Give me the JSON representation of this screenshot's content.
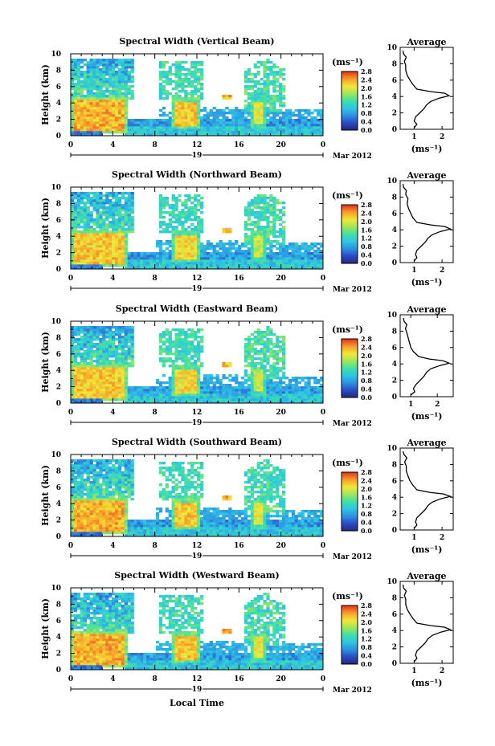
{
  "figure": {
    "xlabel": "Local Time",
    "date_label": "Mar 2012",
    "day_label": "19",
    "unit_label": "(ms⁻¹)",
    "colorbar_ticks": [
      "0.0",
      "0.4",
      "0.8",
      "1.2",
      "1.6",
      "2.0",
      "2.4",
      "2.8"
    ],
    "colorbar_ticks_panel3": [
      "0.0",
      "0.4",
      "0.8",
      "1.2",
      "1.6",
      "2.0",
      "2.4",
      "2.8"
    ],
    "colors": {
      "scale": [
        "#262a6e",
        "#2a48c8",
        "#2d8fe0",
        "#2fc4e6",
        "#3ee0a8",
        "#9ee65a",
        "#f2e83a",
        "#f6a02a",
        "#e8321e"
      ]
    }
  },
  "chart_data": [
    {
      "type": "heatmap",
      "title": "Spectral Width (Vertical Beam)",
      "xlabel": "",
      "ylabel": "Height (km)",
      "xlim": [
        0,
        24
      ],
      "ylim": [
        0,
        10
      ],
      "x_ticks": [
        "0",
        "4",
        "8",
        "12",
        "16",
        "20",
        "0"
      ],
      "y_ticks": [
        "0",
        "2",
        "4",
        "6",
        "8",
        "10"
      ],
      "colorbar": {
        "label": "(ms⁻¹)",
        "range": [
          0.0,
          2.8
        ]
      },
      "average": {
        "title": "Average",
        "xlabel": "(ms⁻¹)",
        "xlim": [
          0.5,
          2.4
        ],
        "x_ticks": [
          "1",
          "2"
        ],
        "y_ticks": [
          "0",
          "2",
          "4",
          "6",
          "8",
          "10"
        ],
        "profile": [
          [
            1.0,
            0.2
          ],
          [
            1.1,
            0.6
          ],
          [
            1.0,
            1.0
          ],
          [
            1.05,
            1.5
          ],
          [
            1.2,
            2.0
          ],
          [
            1.35,
            2.5
          ],
          [
            1.45,
            3.0
          ],
          [
            1.6,
            3.4
          ],
          [
            1.9,
            3.8
          ],
          [
            2.25,
            4.1
          ],
          [
            2.1,
            4.4
          ],
          [
            1.6,
            4.6
          ],
          [
            1.1,
            4.9
          ],
          [
            0.95,
            5.5
          ],
          [
            0.85,
            6.0
          ],
          [
            0.75,
            6.6
          ],
          [
            0.7,
            7.2
          ],
          [
            0.7,
            7.8
          ],
          [
            0.65,
            8.3
          ],
          [
            0.72,
            8.8
          ],
          [
            0.62,
            9.2
          ],
          [
            0.6,
            9.6
          ]
        ]
      },
      "features": [
        {
          "type": "cloud",
          "t": [
            0,
            5.5
          ],
          "h": [
            0.3,
            4.8
          ],
          "v": 2.6
        },
        {
          "type": "cloud",
          "t": [
            9.5,
            12.2
          ],
          "h": [
            0.8,
            4.6
          ],
          "v": 2.5
        },
        {
          "type": "cloud",
          "t": [
            17.2,
            18.7
          ],
          "h": [
            1.0,
            4.5
          ],
          "v": 2.3
        }
      ]
    },
    {
      "type": "heatmap",
      "title": "Spectral Width (Northward Beam)",
      "xlabel": "",
      "ylabel": "Height (km)",
      "xlim": [
        0,
        24
      ],
      "ylim": [
        0,
        10
      ],
      "x_ticks": [
        "0",
        "4",
        "8",
        "12",
        "16",
        "20",
        "0"
      ],
      "y_ticks": [
        "0",
        "2",
        "4",
        "6",
        "8",
        "10"
      ],
      "colorbar": {
        "label": "(ms⁻¹)",
        "range": [
          0.0,
          2.8
        ]
      },
      "average": {
        "title": "Average",
        "xlabel": "(ms⁻¹)",
        "xlim": [
          0.5,
          2.4
        ],
        "x_ticks": [
          "1",
          "2"
        ],
        "y_ticks": [
          "0",
          "2",
          "4",
          "6",
          "8",
          "10"
        ],
        "profile": [
          [
            1.0,
            0.2
          ],
          [
            1.1,
            0.6
          ],
          [
            1.05,
            1.0
          ],
          [
            1.1,
            1.5
          ],
          [
            1.25,
            2.0
          ],
          [
            1.4,
            2.5
          ],
          [
            1.5,
            3.0
          ],
          [
            1.65,
            3.4
          ],
          [
            1.95,
            3.8
          ],
          [
            2.3,
            4.1
          ],
          [
            2.1,
            4.4
          ],
          [
            1.6,
            4.6
          ],
          [
            1.1,
            4.9
          ],
          [
            0.95,
            5.5
          ],
          [
            0.88,
            6.0
          ],
          [
            0.8,
            6.6
          ],
          [
            0.75,
            7.2
          ],
          [
            0.78,
            7.8
          ],
          [
            0.7,
            8.3
          ],
          [
            0.72,
            8.8
          ],
          [
            0.62,
            9.2
          ],
          [
            0.6,
            9.6
          ]
        ]
      },
      "features": [
        {
          "type": "cloud",
          "t": [
            0,
            5.5
          ],
          "h": [
            0.3,
            4.8
          ],
          "v": 2.5
        },
        {
          "type": "cloud",
          "t": [
            9.5,
            12.2
          ],
          "h": [
            0.8,
            4.6
          ],
          "v": 2.4
        },
        {
          "type": "cloud",
          "t": [
            17.2,
            18.7
          ],
          "h": [
            1.0,
            4.5
          ],
          "v": 2.2
        }
      ]
    },
    {
      "type": "heatmap",
      "title": "Spectral Width (Eastward Beam)",
      "xlabel": "",
      "ylabel": "Height (km)",
      "xlim": [
        0,
        24
      ],
      "ylim": [
        0,
        10
      ],
      "x_ticks": [
        "0",
        "4",
        "8",
        "12",
        "16",
        "20",
        "0"
      ],
      "y_ticks": [
        "0",
        "2",
        "4",
        "6",
        "8",
        "10"
      ],
      "colorbar": {
        "label": "(ms⁻¹)",
        "range": [
          0.0,
          2.8
        ]
      },
      "average": {
        "title": "Average",
        "xlabel": "(ms⁻¹)",
        "xlim": [
          0.6,
          2.6
        ],
        "x_ticks": [
          "1",
          "2"
        ],
        "y_ticks": [
          "0",
          "2",
          "4",
          "6",
          "8",
          "10"
        ],
        "profile": [
          [
            1.0,
            0.2
          ],
          [
            1.15,
            0.6
          ],
          [
            1.1,
            1.0
          ],
          [
            1.2,
            1.5
          ],
          [
            1.35,
            2.0
          ],
          [
            1.5,
            2.5
          ],
          [
            1.6,
            3.0
          ],
          [
            1.75,
            3.4
          ],
          [
            2.1,
            3.8
          ],
          [
            2.45,
            4.1
          ],
          [
            2.2,
            4.4
          ],
          [
            1.7,
            4.6
          ],
          [
            1.3,
            4.9
          ],
          [
            1.1,
            5.5
          ],
          [
            1.0,
            6.0
          ],
          [
            0.95,
            6.6
          ],
          [
            0.9,
            7.2
          ],
          [
            0.85,
            7.8
          ],
          [
            0.8,
            8.3
          ],
          [
            0.85,
            8.8
          ],
          [
            0.75,
            9.2
          ],
          [
            0.72,
            9.6
          ]
        ]
      },
      "features": [
        {
          "type": "cloud",
          "t": [
            0,
            5.5
          ],
          "h": [
            0.3,
            4.8
          ],
          "v": 2.5
        },
        {
          "type": "cloud",
          "t": [
            9.5,
            12.2
          ],
          "h": [
            0.8,
            4.6
          ],
          "v": 2.4
        },
        {
          "type": "cloud",
          "t": [
            17.2,
            18.7
          ],
          "h": [
            1.0,
            4.5
          ],
          "v": 2.2
        }
      ]
    },
    {
      "type": "heatmap",
      "title": "Spectral Width (Southward Beam)",
      "xlabel": "",
      "ylabel": "Height (km)",
      "xlim": [
        0,
        24
      ],
      "ylim": [
        0,
        10
      ],
      "x_ticks": [
        "0",
        "4",
        "8",
        "12",
        "16",
        "20",
        "0"
      ],
      "y_ticks": [
        "0",
        "2",
        "4",
        "6",
        "8",
        "10"
      ],
      "colorbar": {
        "label": "(ms⁻¹)",
        "range": [
          0.0,
          2.8
        ]
      },
      "average": {
        "title": "Average",
        "xlabel": "(ms⁻¹)",
        "xlim": [
          0.5,
          2.4
        ],
        "x_ticks": [
          "1",
          "2"
        ],
        "y_ticks": [
          "0",
          "2",
          "4",
          "6",
          "8",
          "10"
        ],
        "profile": [
          [
            1.0,
            0.2
          ],
          [
            1.1,
            0.6
          ],
          [
            1.05,
            1.0
          ],
          [
            1.1,
            1.5
          ],
          [
            1.25,
            2.0
          ],
          [
            1.4,
            2.5
          ],
          [
            1.5,
            3.0
          ],
          [
            1.65,
            3.4
          ],
          [
            1.95,
            3.8
          ],
          [
            2.3,
            4.1
          ],
          [
            2.05,
            4.4
          ],
          [
            1.55,
            4.6
          ],
          [
            1.1,
            4.9
          ],
          [
            0.95,
            5.5
          ],
          [
            0.85,
            6.0
          ],
          [
            0.78,
            6.6
          ],
          [
            0.72,
            7.2
          ],
          [
            0.72,
            7.8
          ],
          [
            0.66,
            8.3
          ],
          [
            0.74,
            8.8
          ],
          [
            0.64,
            9.2
          ],
          [
            0.6,
            9.6
          ]
        ]
      },
      "features": [
        {
          "type": "cloud",
          "t": [
            0,
            5.5
          ],
          "h": [
            0.3,
            4.8
          ],
          "v": 2.6
        },
        {
          "type": "cloud",
          "t": [
            9.5,
            12.2
          ],
          "h": [
            0.8,
            4.6
          ],
          "v": 2.5
        },
        {
          "type": "cloud",
          "t": [
            17.2,
            18.7
          ],
          "h": [
            1.0,
            4.5
          ],
          "v": 2.3
        }
      ]
    },
    {
      "type": "heatmap",
      "title": "Spectral Width (Westward Beam)",
      "xlabel": "Local Time",
      "ylabel": "Height (km)",
      "xlim": [
        0,
        24
      ],
      "ylim": [
        0,
        10
      ],
      "x_ticks": [
        "0",
        "4",
        "8",
        "12",
        "16",
        "20",
        "0"
      ],
      "y_ticks": [
        "0",
        "2",
        "4",
        "6",
        "8",
        "10"
      ],
      "colorbar": {
        "label": "(ms⁻¹)",
        "range": [
          0.0,
          2.8
        ]
      },
      "average": {
        "title": "Average",
        "xlabel": "(ms⁻¹)",
        "xlim": [
          0.5,
          2.4
        ],
        "x_ticks": [
          "1",
          "2"
        ],
        "y_ticks": [
          "0",
          "2",
          "4",
          "6",
          "8",
          "10"
        ],
        "profile": [
          [
            1.0,
            0.2
          ],
          [
            1.1,
            0.6
          ],
          [
            1.05,
            1.0
          ],
          [
            1.1,
            1.5
          ],
          [
            1.25,
            2.0
          ],
          [
            1.4,
            2.5
          ],
          [
            1.5,
            3.0
          ],
          [
            1.65,
            3.4
          ],
          [
            1.95,
            3.8
          ],
          [
            2.3,
            4.1
          ],
          [
            2.1,
            4.4
          ],
          [
            1.6,
            4.6
          ],
          [
            1.1,
            4.9
          ],
          [
            0.95,
            5.5
          ],
          [
            0.85,
            6.0
          ],
          [
            0.75,
            6.6
          ],
          [
            0.7,
            7.2
          ],
          [
            0.7,
            7.8
          ],
          [
            0.65,
            8.3
          ],
          [
            0.72,
            8.8
          ],
          [
            0.62,
            9.2
          ],
          [
            0.6,
            9.6
          ]
        ]
      },
      "features": [
        {
          "type": "cloud",
          "t": [
            0,
            5.5
          ],
          "h": [
            0.3,
            4.8
          ],
          "v": 2.6
        },
        {
          "type": "cloud",
          "t": [
            9.5,
            12.2
          ],
          "h": [
            0.8,
            4.6
          ],
          "v": 2.5
        },
        {
          "type": "cloud",
          "t": [
            17.2,
            18.7
          ],
          "h": [
            1.0,
            4.5
          ],
          "v": 2.3
        }
      ]
    }
  ]
}
